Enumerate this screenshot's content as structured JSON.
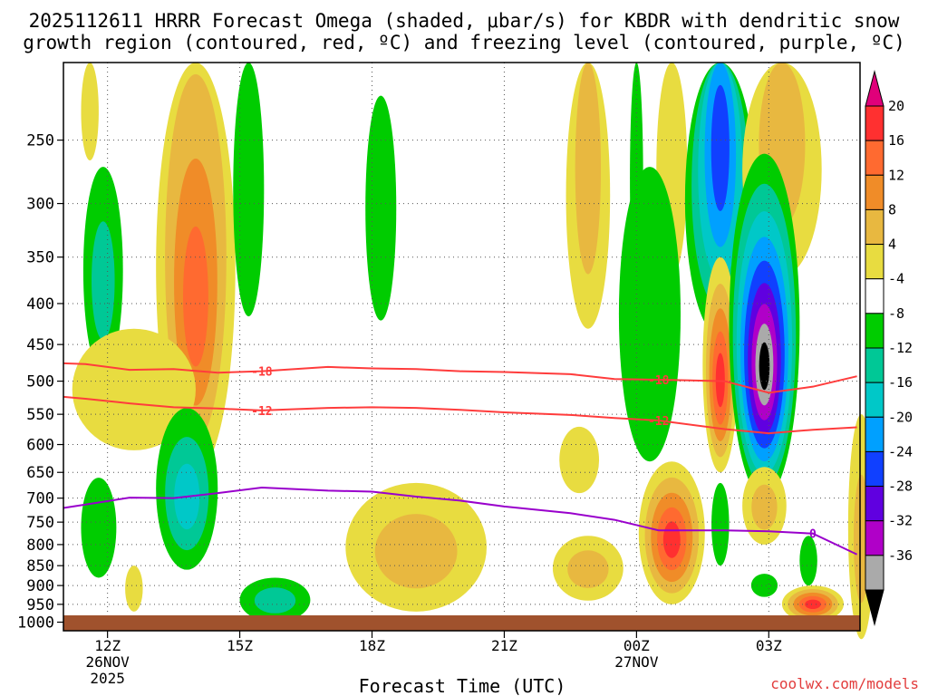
{
  "title": {
    "line1": "2025112611 HRRR Forecast Omega (shaded, μbar/s) for KBDR with dendritic snow",
    "line2": "growth region (contoured, red, ºC) and freezing level (contoured, purple, ºC)"
  },
  "watermark": "coolwx.com/models",
  "chart_data": {
    "type": "heatmap",
    "title": "2025112611 HRRR Forecast Omega (shaded, μbar/s) for KBDR with dendritic snow growth region (contoured, red, ºC) and freezing level (contoured, purple, ºC)",
    "xlabel": "Forecast Time (UTC)",
    "ylabel": "",
    "x_ticks": [
      {
        "label": "12Z",
        "sub1": "26NOV",
        "sub2": "2025"
      },
      {
        "label": "15Z",
        "sub1": "",
        "sub2": ""
      },
      {
        "label": "18Z",
        "sub1": "",
        "sub2": ""
      },
      {
        "label": "21Z",
        "sub1": "",
        "sub2": ""
      },
      {
        "label": "00Z",
        "sub1": "27NOV",
        "sub2": ""
      },
      {
        "label": "03Z",
        "sub1": "",
        "sub2": ""
      }
    ],
    "y_ticks": [
      "250",
      "300",
      "350",
      "400",
      "450",
      "500",
      "550",
      "600",
      "650",
      "700",
      "750",
      "800",
      "850",
      "900",
      "950",
      "1000"
    ],
    "y_scale": "log-pressure (reversed)",
    "ylim": [
      1025,
      200
    ],
    "grid": true,
    "colorbar": {
      "labels": [
        "20",
        "16",
        "12",
        "8",
        "4",
        "-4",
        "-8",
        "-12",
        "-16",
        "-20",
        "-24",
        "-28",
        "-32",
        "-36"
      ],
      "colors": [
        "#e0007a",
        "#ff3030",
        "#ff6a30",
        "#f08c28",
        "#e8b840",
        "#e8dc40",
        "#ffffff",
        "#00cc00",
        "#00c896",
        "#00c8c8",
        "#00a0ff",
        "#1040ff",
        "#6000e0",
        "#b000c8",
        "#aaaaaa",
        "#000000"
      ]
    },
    "contours": [
      {
        "label": "-18",
        "color": "#ff3c3c",
        "points": [
          [
            11.0,
            475
          ],
          [
            11.5,
            476
          ],
          [
            12.5,
            484
          ],
          [
            13.5,
            483
          ],
          [
            14.5,
            488
          ],
          [
            15.5,
            486
          ],
          [
            17.0,
            480
          ],
          [
            18.0,
            482
          ],
          [
            19.0,
            483
          ],
          [
            20.0,
            486
          ],
          [
            21.0,
            487
          ],
          [
            22.5,
            490
          ],
          [
            23.5,
            497
          ],
          [
            24.5,
            498
          ],
          [
            26.0,
            500
          ],
          [
            27.0,
            517
          ],
          [
            28.0,
            508
          ],
          [
            29.0,
            493
          ]
        ]
      },
      {
        "label": "-12",
        "color": "#ff3c3c",
        "points": [
          [
            11.0,
            523
          ],
          [
            11.5,
            526
          ],
          [
            12.5,
            533
          ],
          [
            13.5,
            539
          ],
          [
            14.5,
            541
          ],
          [
            15.5,
            544
          ],
          [
            17.0,
            540
          ],
          [
            18.0,
            539
          ],
          [
            19.0,
            540
          ],
          [
            20.0,
            543
          ],
          [
            21.0,
            547
          ],
          [
            22.5,
            551
          ],
          [
            23.5,
            556
          ],
          [
            24.5,
            560
          ],
          [
            26.0,
            574
          ],
          [
            27.0,
            581
          ],
          [
            28.0,
            575
          ],
          [
            29.0,
            571
          ]
        ]
      },
      {
        "label": "0",
        "color": "#9900cc",
        "points": [
          [
            11.0,
            720
          ],
          [
            11.5,
            713
          ],
          [
            12.5,
            699
          ],
          [
            13.5,
            700
          ],
          [
            14.5,
            690
          ],
          [
            15.5,
            679
          ],
          [
            17.0,
            685
          ],
          [
            18.0,
            687
          ],
          [
            19.0,
            697
          ],
          [
            20.0,
            705
          ],
          [
            21.0,
            717
          ],
          [
            22.5,
            731
          ],
          [
            23.5,
            745
          ],
          [
            24.5,
            768
          ],
          [
            26.0,
            768
          ],
          [
            27.0,
            770
          ],
          [
            28.0,
            775
          ],
          [
            29.0,
            823
          ]
        ]
      }
    ],
    "blobs": [
      {
        "x": 11.6,
        "p": 230,
        "w": 0.2,
        "h": 35,
        "levels": [
          4
        ]
      },
      {
        "x": 11.9,
        "p": 380,
        "w": 0.45,
        "h": 110,
        "levels": [
          -4,
          -8
        ]
      },
      {
        "x": 14.0,
        "p": 400,
        "w": 0.9,
        "h": 250,
        "levels": [
          4,
          8,
          12,
          16
        ]
      },
      {
        "x": 12.6,
        "p": 520,
        "w": 1.4,
        "h": 90,
        "levels": [
          4
        ]
      },
      {
        "x": 15.2,
        "p": 295,
        "w": 0.35,
        "h": 120,
        "levels": [
          -4
        ]
      },
      {
        "x": 18.2,
        "p": 320,
        "w": 0.35,
        "h": 100,
        "levels": [
          -4
        ]
      },
      {
        "x": 13.8,
        "p": 700,
        "w": 0.7,
        "h": 160,
        "levels": [
          -4,
          -8,
          -12
        ]
      },
      {
        "x": 11.8,
        "p": 770,
        "w": 0.4,
        "h": 110,
        "levels": [
          -4
        ]
      },
      {
        "x": 12.6,
        "p": 910,
        "w": 0.2,
        "h": 60,
        "levels": [
          4
        ]
      },
      {
        "x": 15.8,
        "p": 940,
        "w": 0.8,
        "h": 60,
        "levels": [
          -4,
          -8
        ]
      },
      {
        "x": 19.0,
        "p": 820,
        "w": 1.6,
        "h": 150,
        "levels": [
          4,
          8
        ]
      },
      {
        "x": 22.7,
        "p": 630,
        "w": 0.45,
        "h": 60,
        "levels": [
          4
        ]
      },
      {
        "x": 22.9,
        "p": 860,
        "w": 0.8,
        "h": 80,
        "levels": [
          4,
          8
        ]
      },
      {
        "x": 22.9,
        "p": 280,
        "w": 0.5,
        "h": 150,
        "levels": [
          4,
          8
        ]
      },
      {
        "x": 24.0,
        "p": 270,
        "w": 0.15,
        "h": 120,
        "levels": [
          -4
        ]
      },
      {
        "x": 24.8,
        "p": 260,
        "w": 0.35,
        "h": 110,
        "levels": [
          4
        ]
      },
      {
        "x": 24.3,
        "p": 450,
        "w": 0.7,
        "h": 180,
        "levels": [
          -4
        ]
      },
      {
        "x": 25.9,
        "p": 260,
        "w": 0.8,
        "h": 180,
        "levels": [
          -4,
          -8,
          -12,
          -16,
          -20
        ]
      },
      {
        "x": 27.3,
        "p": 250,
        "w": 0.9,
        "h": 120,
        "levels": [
          4,
          8
        ]
      },
      {
        "x": 25.9,
        "p": 500,
        "w": 0.4,
        "h": 150,
        "levels": [
          4,
          8,
          12,
          16,
          20
        ]
      },
      {
        "x": 26.9,
        "p": 480,
        "w": 0.8,
        "h": 220,
        "levels": [
          -4,
          -8,
          -12,
          -16,
          -20,
          -24,
          -28,
          -32,
          -36
        ]
      },
      {
        "x": 24.8,
        "p": 790,
        "w": 0.75,
        "h": 160,
        "levels": [
          4,
          8,
          12,
          16,
          20
        ]
      },
      {
        "x": 25.9,
        "p": 760,
        "w": 0.2,
        "h": 90,
        "levels": [
          -4
        ]
      },
      {
        "x": 26.9,
        "p": 720,
        "w": 0.5,
        "h": 80,
        "levels": [
          4,
          8
        ]
      },
      {
        "x": 27.9,
        "p": 840,
        "w": 0.2,
        "h": 60,
        "levels": [
          -4
        ]
      },
      {
        "x": 26.9,
        "p": 900,
        "w": 0.3,
        "h": 30,
        "levels": [
          -4
        ]
      },
      {
        "x": 28.0,
        "p": 950,
        "w": 0.7,
        "h": 50,
        "levels": [
          4,
          8,
          12,
          16,
          20
        ]
      },
      {
        "x": 29.1,
        "p": 800,
        "w": 0.3,
        "h": 250,
        "levels": [
          4,
          8
        ]
      }
    ]
  }
}
